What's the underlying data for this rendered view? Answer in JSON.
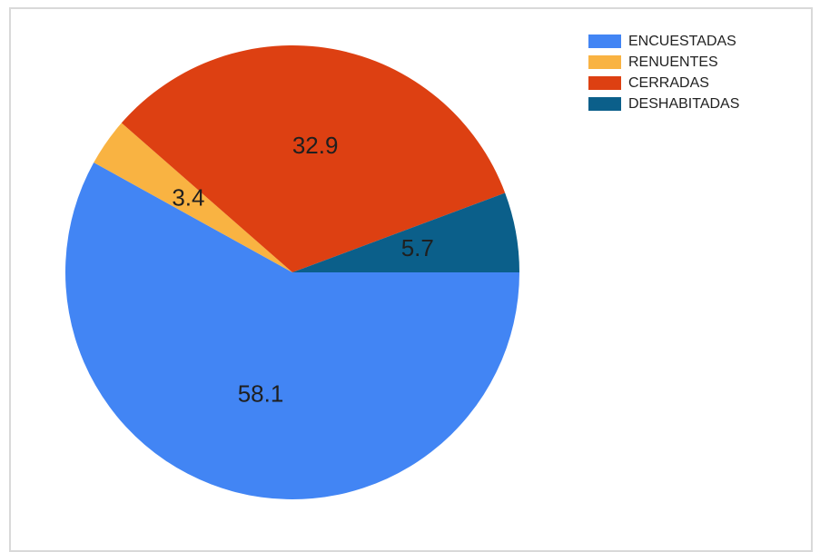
{
  "chart_data": {
    "type": "pie",
    "slices": [
      {
        "label": "ENCUESTADAS",
        "value": 58.1,
        "color": "#4285f4"
      },
      {
        "label": "RENUENTES",
        "value": 3.4,
        "color": "#f9b342"
      },
      {
        "label": "CERRADAS",
        "value": 32.9,
        "color": "#dd4012"
      },
      {
        "label": "DESHABITADAS",
        "value": 5.7,
        "color": "#0b5f8a"
      }
    ],
    "title": "",
    "legend_position": "top-right"
  }
}
